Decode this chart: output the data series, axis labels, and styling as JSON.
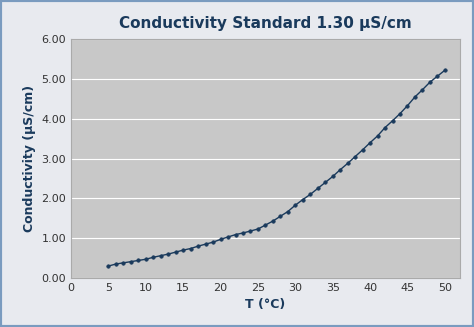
{
  "title": "Conductivity Standard 1.30 μS/cm",
  "xlabel": "T (°C)",
  "ylabel": "Conductivity (μS/cm)",
  "xlim": [
    0,
    52
  ],
  "ylim": [
    0,
    6.0
  ],
  "xticks": [
    0,
    5,
    10,
    15,
    20,
    25,
    30,
    35,
    40,
    45,
    50
  ],
  "yticks": [
    0.0,
    1.0,
    2.0,
    3.0,
    4.0,
    5.0,
    6.0
  ],
  "background_color": "#c8c8c8",
  "outer_background": "#e8eaef",
  "line_color": "#1a3a5c",
  "marker_color": "#1a3a5c",
  "title_color": "#1a3a5c",
  "axis_color": "#333333",
  "border_color": "#7a9bbf",
  "x_data": [
    5,
    6,
    7,
    8,
    9,
    10,
    11,
    12,
    13,
    14,
    15,
    16,
    17,
    18,
    19,
    20,
    21,
    22,
    23,
    24,
    25,
    26,
    27,
    28,
    29,
    30,
    31,
    32,
    33,
    34,
    35,
    36,
    37,
    38,
    39,
    40,
    41,
    42,
    43,
    44,
    45,
    46,
    47,
    48,
    49,
    50
  ],
  "y_data": [
    0.3,
    0.35,
    0.38,
    0.41,
    0.44,
    0.47,
    0.52,
    0.56,
    0.6,
    0.65,
    0.7,
    0.74,
    0.8,
    0.85,
    0.9,
    0.97,
    1.03,
    1.09,
    1.13,
    1.18,
    1.23,
    1.33,
    1.43,
    1.55,
    1.67,
    1.83,
    1.97,
    2.1,
    2.25,
    2.4,
    2.55,
    2.72,
    2.88,
    3.05,
    3.22,
    3.4,
    3.57,
    3.78,
    3.95,
    4.13,
    4.33,
    4.55,
    4.73,
    4.92,
    5.07,
    5.22
  ]
}
